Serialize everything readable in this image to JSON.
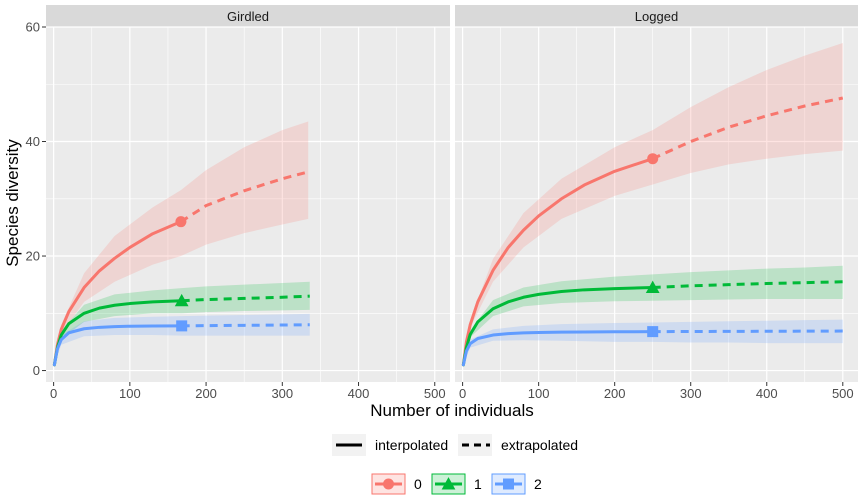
{
  "chart_data": {
    "type": "line",
    "xlabel": "Number of individuals",
    "ylabel": "Species diversity",
    "xlim": [
      -10,
      520
    ],
    "ylim": [
      -2,
      60
    ],
    "x_ticks": [
      0,
      100,
      200,
      300,
      400,
      500
    ],
    "y_ticks": [
      0,
      20,
      40,
      60
    ],
    "grid": true,
    "legend_position": "bottom",
    "line_type_legend": [
      "interpolated",
      "extrapolated"
    ],
    "panels": [
      {
        "name": "Girdled",
        "series": [
          {
            "name": "0",
            "color": "#F8766D",
            "marker": "circle",
            "observed": [
              167,
              26
            ],
            "interpolated": [
              [
                1,
                1
              ],
              [
                5,
                4.5
              ],
              [
                10,
                7.2
              ],
              [
                20,
                10.3
              ],
              [
                40,
                14.5
              ],
              [
                60,
                17.4
              ],
              [
                80,
                19.6
              ],
              [
                100,
                21.5
              ],
              [
                130,
                23.9
              ],
              [
                167,
                26
              ]
            ],
            "extrapolated": [
              [
                167,
                26
              ],
              [
                200,
                28.8
              ],
              [
                250,
                31.4
              ],
              [
                300,
                33.5
              ],
              [
                334,
                34.7
              ]
            ],
            "band_lower": [
              [
                1,
                1
              ],
              [
                10,
                6.5
              ],
              [
                40,
                12
              ],
              [
                80,
                15.5
              ],
              [
                130,
                18.5
              ],
              [
                167,
                20
              ],
              [
                200,
                22
              ],
              [
                250,
                24
              ],
              [
                300,
                25.5
              ],
              [
                334,
                26.5
              ]
            ],
            "band_upper": [
              [
                1,
                1
              ],
              [
                10,
                8
              ],
              [
                40,
                17
              ],
              [
                80,
                23.5
              ],
              [
                130,
                28.5
              ],
              [
                167,
                31.5
              ],
              [
                200,
                35
              ],
              [
                250,
                39
              ],
              [
                300,
                42
              ],
              [
                334,
                43.5
              ]
            ]
          },
          {
            "name": "1",
            "color": "#00BA38",
            "marker": "triangle",
            "observed": [
              168,
              12.2
            ],
            "interpolated": [
              [
                1,
                1
              ],
              [
                5,
                4
              ],
              [
                10,
                6.2
              ],
              [
                20,
                8.2
              ],
              [
                40,
                10
              ],
              [
                60,
                10.9
              ],
              [
                80,
                11.4
              ],
              [
                100,
                11.7
              ],
              [
                130,
                12
              ],
              [
                168,
                12.2
              ]
            ],
            "extrapolated": [
              [
                168,
                12.2
              ],
              [
                200,
                12.4
              ],
              [
                250,
                12.6
              ],
              [
                300,
                12.8
              ],
              [
                336,
                13
              ]
            ],
            "band_lower": [
              [
                1,
                1
              ],
              [
                10,
                5.5
              ],
              [
                40,
                8.5
              ],
              [
                80,
                9.5
              ],
              [
                130,
                10
              ],
              [
                168,
                10
              ],
              [
                200,
                10.2
              ],
              [
                250,
                10.4
              ],
              [
                300,
                10.5
              ],
              [
                336,
                10.6
              ]
            ],
            "band_upper": [
              [
                1,
                1
              ],
              [
                10,
                7
              ],
              [
                40,
                11.5
              ],
              [
                80,
                13.3
              ],
              [
                130,
                14
              ],
              [
                168,
                14.4
              ],
              [
                200,
                14.7
              ],
              [
                250,
                15
              ],
              [
                300,
                15.3
              ],
              [
                336,
                15.5
              ]
            ]
          },
          {
            "name": "2",
            "color": "#619CFF",
            "marker": "square",
            "observed": [
              168,
              7.8
            ],
            "interpolated": [
              [
                1,
                1
              ],
              [
                5,
                3.8
              ],
              [
                10,
                5.4
              ],
              [
                20,
                6.6
              ],
              [
                40,
                7.3
              ],
              [
                60,
                7.55
              ],
              [
                80,
                7.68
              ],
              [
                100,
                7.74
              ],
              [
                130,
                7.78
              ],
              [
                168,
                7.8
              ]
            ],
            "extrapolated": [
              [
                168,
                7.8
              ],
              [
                200,
                7.85
              ],
              [
                250,
                7.9
              ],
              [
                300,
                7.95
              ],
              [
                336,
                8
              ]
            ],
            "band_lower": [
              [
                1,
                1
              ],
              [
                10,
                4.5
              ],
              [
                40,
                6
              ],
              [
                80,
                6.2
              ],
              [
                130,
                6.2
              ],
              [
                168,
                6.1
              ],
              [
                200,
                6.1
              ],
              [
                250,
                6.1
              ],
              [
                300,
                6.1
              ],
              [
                336,
                6.1
              ]
            ],
            "band_upper": [
              [
                1,
                1
              ],
              [
                10,
                6.2
              ],
              [
                40,
                8.6
              ],
              [
                80,
                9.2
              ],
              [
                130,
                9.4
              ],
              [
                168,
                9.5
              ],
              [
                200,
                9.6
              ],
              [
                250,
                9.7
              ],
              [
                300,
                9.8
              ],
              [
                336,
                9.9
              ]
            ]
          }
        ]
      },
      {
        "name": "Logged",
        "series": [
          {
            "name": "0",
            "color": "#F8766D",
            "marker": "circle",
            "observed": [
              250,
              37
            ],
            "interpolated": [
              [
                1,
                1
              ],
              [
                5,
                5
              ],
              [
                10,
                8
              ],
              [
                20,
                12
              ],
              [
                40,
                17.5
              ],
              [
                60,
                21.5
              ],
              [
                80,
                24.5
              ],
              [
                100,
                27
              ],
              [
                130,
                30
              ],
              [
                160,
                32.4
              ],
              [
                200,
                34.8
              ],
              [
                250,
                37
              ]
            ],
            "extrapolated": [
              [
                250,
                37
              ],
              [
                300,
                40
              ],
              [
                350,
                42.5
              ],
              [
                400,
                44.5
              ],
              [
                450,
                46.2
              ],
              [
                500,
                47.6
              ]
            ],
            "band_lower": [
              [
                1,
                1
              ],
              [
                10,
                7.5
              ],
              [
                40,
                15.5
              ],
              [
                80,
                21.5
              ],
              [
                130,
                26.5
              ],
              [
                200,
                30.5
              ],
              [
                250,
                32.5
              ],
              [
                300,
                34.5
              ],
              [
                350,
                36
              ],
              [
                400,
                37
              ],
              [
                450,
                37.8
              ],
              [
                500,
                38.4
              ]
            ],
            "band_upper": [
              [
                1,
                1
              ],
              [
                10,
                8.8
              ],
              [
                40,
                19.5
              ],
              [
                80,
                27.5
              ],
              [
                130,
                33.5
              ],
              [
                200,
                39
              ],
              [
                250,
                42
              ],
              [
                300,
                46
              ],
              [
                350,
                49.5
              ],
              [
                400,
                52.5
              ],
              [
                450,
                55
              ],
              [
                500,
                57.2
              ]
            ]
          },
          {
            "name": "1",
            "color": "#00BA38",
            "marker": "triangle",
            "observed": [
              250,
              14.5
            ],
            "interpolated": [
              [
                1,
                1
              ],
              [
                5,
                4
              ],
              [
                10,
                6.3
              ],
              [
                20,
                8.5
              ],
              [
                40,
                10.8
              ],
              [
                60,
                12
              ],
              [
                80,
                12.8
              ],
              [
                100,
                13.3
              ],
              [
                130,
                13.8
              ],
              [
                160,
                14.1
              ],
              [
                200,
                14.3
              ],
              [
                250,
                14.5
              ]
            ],
            "extrapolated": [
              [
                250,
                14.5
              ],
              [
                300,
                14.8
              ],
              [
                350,
                15
              ],
              [
                400,
                15.2
              ],
              [
                450,
                15.35
              ],
              [
                500,
                15.5
              ]
            ],
            "band_lower": [
              [
                1,
                1
              ],
              [
                10,
                5.8
              ],
              [
                40,
                9.5
              ],
              [
                80,
                11.2
              ],
              [
                130,
                11.8
              ],
              [
                200,
                12.1
              ],
              [
                250,
                12.2
              ],
              [
                300,
                12.3
              ],
              [
                350,
                12.4
              ],
              [
                400,
                12.5
              ],
              [
                450,
                12.5
              ],
              [
                500,
                12.5
              ]
            ],
            "band_upper": [
              [
                1,
                1
              ],
              [
                10,
                7
              ],
              [
                40,
                12.3
              ],
              [
                80,
                14.5
              ],
              [
                130,
                15.6
              ],
              [
                200,
                16.4
              ],
              [
                250,
                16.8
              ],
              [
                300,
                17.2
              ],
              [
                350,
                17.5
              ],
              [
                400,
                17.8
              ],
              [
                450,
                18
              ],
              [
                500,
                18.3
              ]
            ]
          },
          {
            "name": "2",
            "color": "#619CFF",
            "marker": "square",
            "observed": [
              250,
              6.8
            ],
            "interpolated": [
              [
                1,
                1
              ],
              [
                5,
                3.4
              ],
              [
                10,
                4.7
              ],
              [
                20,
                5.6
              ],
              [
                40,
                6.2
              ],
              [
                60,
                6.45
              ],
              [
                80,
                6.58
              ],
              [
                100,
                6.65
              ],
              [
                130,
                6.7
              ],
              [
                160,
                6.74
              ],
              [
                200,
                6.77
              ],
              [
                250,
                6.8
              ]
            ],
            "extrapolated": [
              [
                250,
                6.8
              ],
              [
                300,
                6.82
              ],
              [
                350,
                6.84
              ],
              [
                400,
                6.86
              ],
              [
                450,
                6.88
              ],
              [
                500,
                6.9
              ]
            ],
            "band_lower": [
              [
                1,
                1
              ],
              [
                10,
                4
              ],
              [
                40,
                5.2
              ],
              [
                80,
                5.3
              ],
              [
                130,
                5.2
              ],
              [
                200,
                5
              ],
              [
                250,
                5
              ],
              [
                300,
                4.9
              ],
              [
                350,
                4.9
              ],
              [
                400,
                4.8
              ],
              [
                450,
                4.8
              ],
              [
                500,
                4.8
              ]
            ],
            "band_upper": [
              [
                1,
                1
              ],
              [
                10,
                5.4
              ],
              [
                40,
                7.2
              ],
              [
                80,
                7.8
              ],
              [
                130,
                8.1
              ],
              [
                200,
                8.3
              ],
              [
                250,
                8.4
              ],
              [
                300,
                8.5
              ],
              [
                350,
                8.6
              ],
              [
                400,
                8.7
              ],
              [
                450,
                8.8
              ],
              [
                500,
                8.9
              ]
            ]
          }
        ]
      }
    ]
  }
}
